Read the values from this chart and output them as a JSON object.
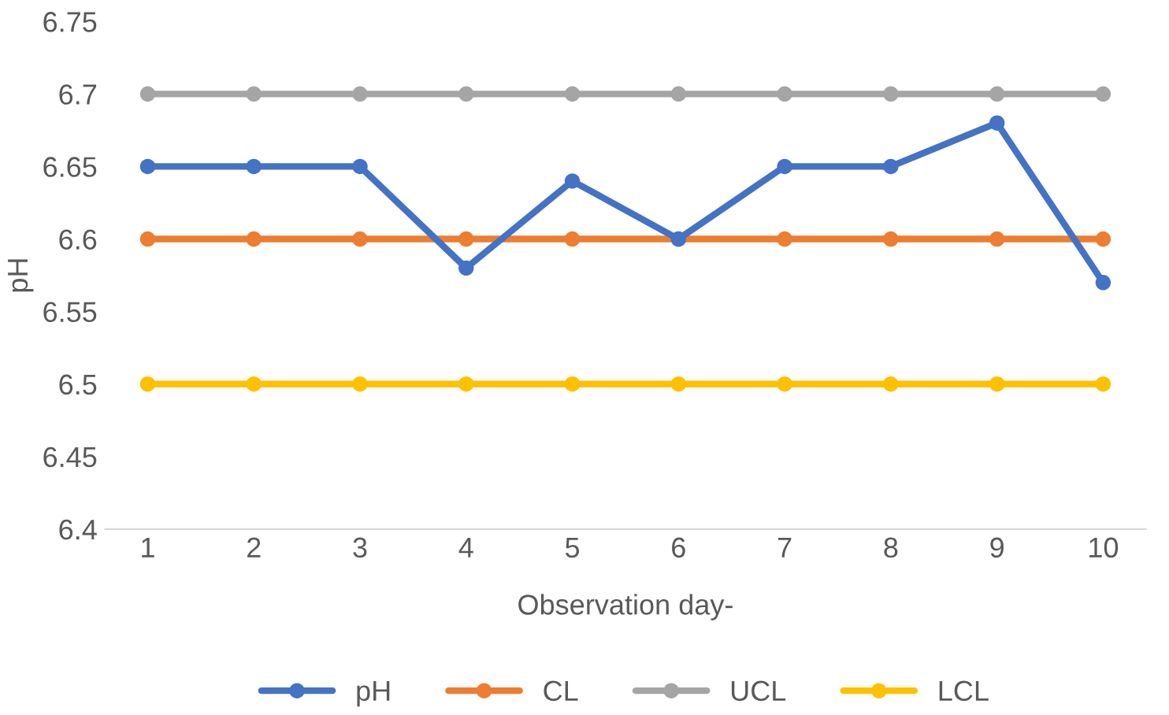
{
  "chart_data": {
    "type": "line",
    "xlabel": "Observation day-",
    "ylabel": "pH",
    "categories": [
      "1",
      "2",
      "3",
      "4",
      "5",
      "6",
      "7",
      "8",
      "9",
      "10"
    ],
    "series": [
      {
        "name": "pH",
        "color": "#4472c4",
        "values": [
          6.65,
          6.65,
          6.65,
          6.58,
          6.64,
          6.6,
          6.65,
          6.65,
          6.68,
          6.57
        ]
      },
      {
        "name": "CL",
        "color": "#ed7d31",
        "values": [
          6.6,
          6.6,
          6.6,
          6.6,
          6.6,
          6.6,
          6.6,
          6.6,
          6.6,
          6.6
        ]
      },
      {
        "name": "UCL",
        "color": "#a5a5a5",
        "values": [
          6.7,
          6.7,
          6.7,
          6.7,
          6.7,
          6.7,
          6.7,
          6.7,
          6.7,
          6.7
        ]
      },
      {
        "name": "LCL",
        "color": "#ffc000",
        "values": [
          6.5,
          6.5,
          6.5,
          6.5,
          6.5,
          6.5,
          6.5,
          6.5,
          6.5,
          6.5
        ]
      }
    ],
    "ylim": [
      6.4,
      6.75
    ],
    "yticks": [
      6.4,
      6.45,
      6.5,
      6.55,
      6.6,
      6.65,
      6.7,
      6.75
    ],
    "grid": false,
    "legend": "bottom",
    "marker": "circle",
    "line_style": "solid"
  }
}
